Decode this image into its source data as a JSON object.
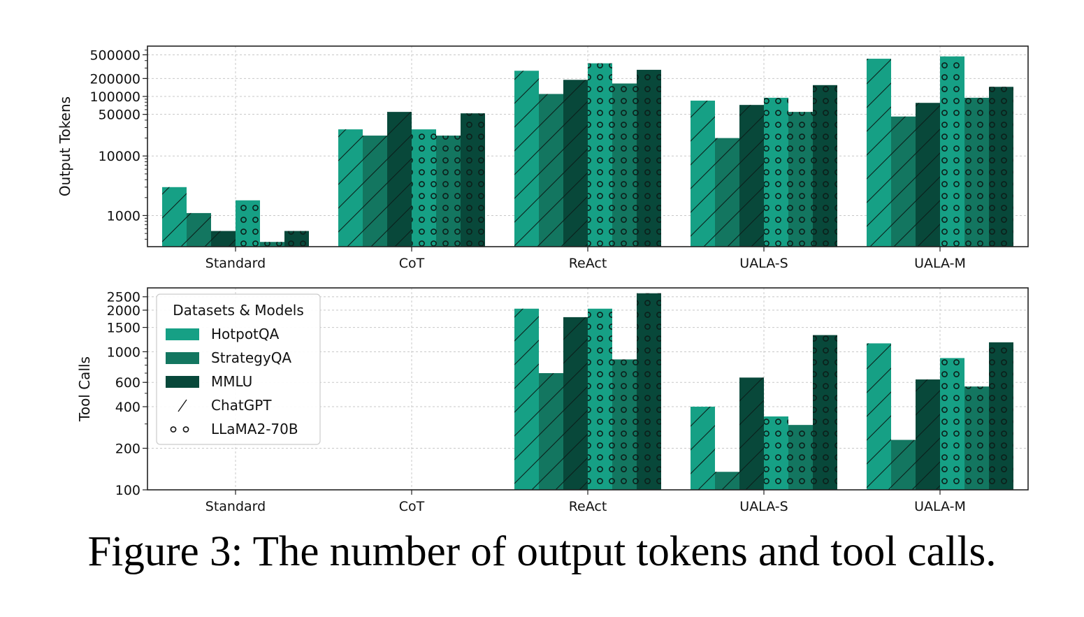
{
  "caption": "Figure 3: The number of output tokens and tool calls.",
  "legend": {
    "title": "Datasets & Models",
    "entries": [
      {
        "label": "HotpotQA",
        "kind": "color",
        "color": "#16a085"
      },
      {
        "label": "StrategyQA",
        "kind": "color",
        "color": "#137660"
      },
      {
        "label": "MMLU",
        "kind": "color",
        "color": "#08483a"
      },
      {
        "label": "ChatGPT",
        "kind": "hatch",
        "hatch": "slash"
      },
      {
        "label": "LLaMA2-70B",
        "kind": "hatch",
        "hatch": "circles"
      }
    ]
  },
  "chart_data": [
    {
      "type": "bar",
      "ylabel": "Output Tokens",
      "xlabel": "",
      "yscale": "log",
      "ylim": [
        300,
        700000
      ],
      "yticks": [
        1000,
        10000,
        50000,
        100000,
        200000,
        500000
      ],
      "ytick_labels": [
        "1000",
        "10000",
        "50000",
        "100000",
        "200000",
        "500000"
      ],
      "grid": true,
      "categories": [
        "Standard",
        "CoT",
        "ReAct",
        "UALA-S",
        "UALA-M"
      ],
      "series": [
        {
          "name": "HotpotQA ChatGPT",
          "dataset": "HotpotQA",
          "model": "ChatGPT",
          "values": [
            3000,
            28000,
            270000,
            85000,
            430000
          ]
        },
        {
          "name": "StrategyQA ChatGPT",
          "dataset": "StrategyQA",
          "model": "ChatGPT",
          "values": [
            1100,
            22000,
            110000,
            20000,
            46000
          ]
        },
        {
          "name": "MMLU ChatGPT",
          "dataset": "MMLU",
          "model": "ChatGPT",
          "values": [
            550,
            55000,
            190000,
            72000,
            78000
          ]
        },
        {
          "name": "HotpotQA LLaMA2-70B",
          "dataset": "HotpotQA",
          "model": "LLaMA2-70B",
          "values": [
            1800,
            28000,
            360000,
            95000,
            470000
          ]
        },
        {
          "name": "StrategyQA LLaMA2-70B",
          "dataset": "StrategyQA",
          "model": "LLaMA2-70B",
          "values": [
            360,
            22000,
            165000,
            55000,
            95000
          ]
        },
        {
          "name": "MMLU LLaMA2-70B",
          "dataset": "MMLU",
          "model": "LLaMA2-70B",
          "values": [
            550,
            52000,
            280000,
            155000,
            145000
          ]
        }
      ]
    },
    {
      "type": "bar",
      "ylabel": "Tool Calls",
      "xlabel": "",
      "yscale": "log",
      "ylim": [
        100,
        2900
      ],
      "yticks": [
        100,
        200,
        400,
        600,
        1000,
        1500,
        2000,
        2500
      ],
      "ytick_labels": [
        "100",
        "200",
        "400",
        "600",
        "1000",
        "1500",
        "2000",
        "2500"
      ],
      "grid": true,
      "categories": [
        "Standard",
        "CoT",
        "ReAct",
        "UALA-S",
        "UALA-M"
      ],
      "series": [
        {
          "name": "HotpotQA ChatGPT",
          "dataset": "HotpotQA",
          "model": "ChatGPT",
          "values": [
            0,
            0,
            2050,
            400,
            1150
          ]
        },
        {
          "name": "StrategyQA ChatGPT",
          "dataset": "StrategyQA",
          "model": "ChatGPT",
          "values": [
            0,
            0,
            700,
            135,
            230
          ]
        },
        {
          "name": "MMLU ChatGPT",
          "dataset": "MMLU",
          "model": "ChatGPT",
          "values": [
            0,
            0,
            1780,
            650,
            630
          ]
        },
        {
          "name": "HotpotQA LLaMA2-70B",
          "dataset": "HotpotQA",
          "model": "LLaMA2-70B",
          "values": [
            0,
            0,
            2050,
            340,
            900
          ]
        },
        {
          "name": "StrategyQA LLaMA2-70B",
          "dataset": "StrategyQA",
          "model": "LLaMA2-70B",
          "values": [
            0,
            0,
            880,
            295,
            560
          ]
        },
        {
          "name": "MMLU LLaMA2-70B",
          "dataset": "MMLU",
          "model": "LLaMA2-70B",
          "values": [
            0,
            0,
            2650,
            1320,
            1170
          ]
        }
      ]
    }
  ]
}
